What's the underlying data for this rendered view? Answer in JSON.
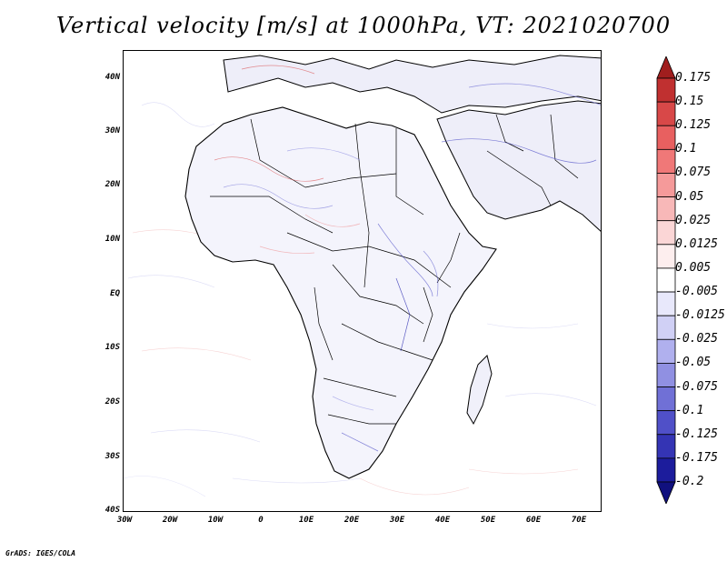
{
  "title": "Vertical velocity [m/s] at 1000hPa, VT: 2021020700",
  "lat_labels": [
    "40N",
    "30N",
    "20N",
    "10N",
    "EQ",
    "10S",
    "20S",
    "30S",
    "40S"
  ],
  "lon_labels": [
    "30W",
    "20W",
    "10W",
    "0",
    "10E",
    "20E",
    "30E",
    "40E",
    "50E",
    "60E",
    "70E"
  ],
  "colorbar": {
    "labels": [
      "0.175",
      "0.15",
      "0.125",
      "0.1",
      "0.075",
      "0.05",
      "0.025",
      "0.0125",
      "0.005",
      "-0.005",
      "-0.0125",
      "-0.025",
      "-0.05",
      "-0.075",
      "-0.1",
      "-0.125",
      "-0.175",
      "-0.2"
    ],
    "colors": [
      "#a01e1e",
      "#c03030",
      "#d84848",
      "#e86060",
      "#f07878",
      "#f59a9a",
      "#f8b8b8",
      "#fbd6d6",
      "#fdeeee",
      "#ffffff",
      "#e8e8fb",
      "#d0d0f5",
      "#b0b0ee",
      "#9090e2",
      "#7070d6",
      "#5050c8",
      "#3434b4",
      "#1c1c9c",
      "#10107e"
    ]
  },
  "footer": "GrADS: IGES/COLA"
}
